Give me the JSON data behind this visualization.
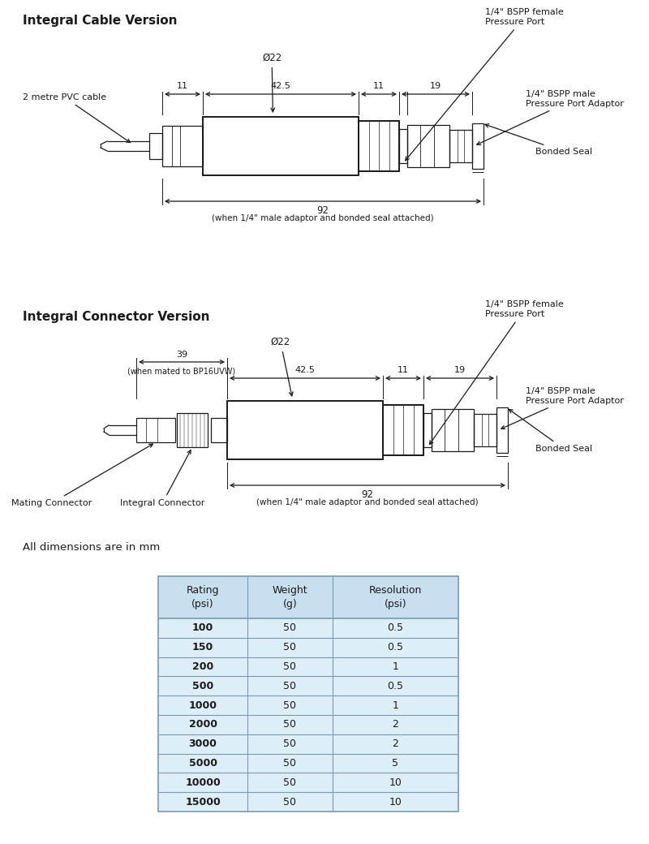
{
  "title1": "Integral Cable Version",
  "title2": "Integral Connector Version",
  "dim_note": "All dimensions are in mm",
  "bg_color": "#ffffff",
  "line_color": "#1a1a1a",
  "table_header_bg": "#c8dff0",
  "table_row_bg": "#deeef8",
  "table_border": "#7a9ab0",
  "table_headers": [
    "Rating\n(psi)",
    "Weight\n(g)",
    "Resolution\n(psi)"
  ],
  "table_rows": [
    [
      "100",
      "50",
      "0.5"
    ],
    [
      "150",
      "50",
      "0.5"
    ],
    [
      "200",
      "50",
      "1"
    ],
    [
      "500",
      "50",
      "0.5"
    ],
    [
      "1000",
      "50",
      "1"
    ],
    [
      "2000",
      "50",
      "2"
    ],
    [
      "3000",
      "50",
      "2"
    ],
    [
      "5000",
      "50",
      "5"
    ],
    [
      "10000",
      "50",
      "10"
    ],
    [
      "15000",
      "50",
      "10"
    ]
  ]
}
